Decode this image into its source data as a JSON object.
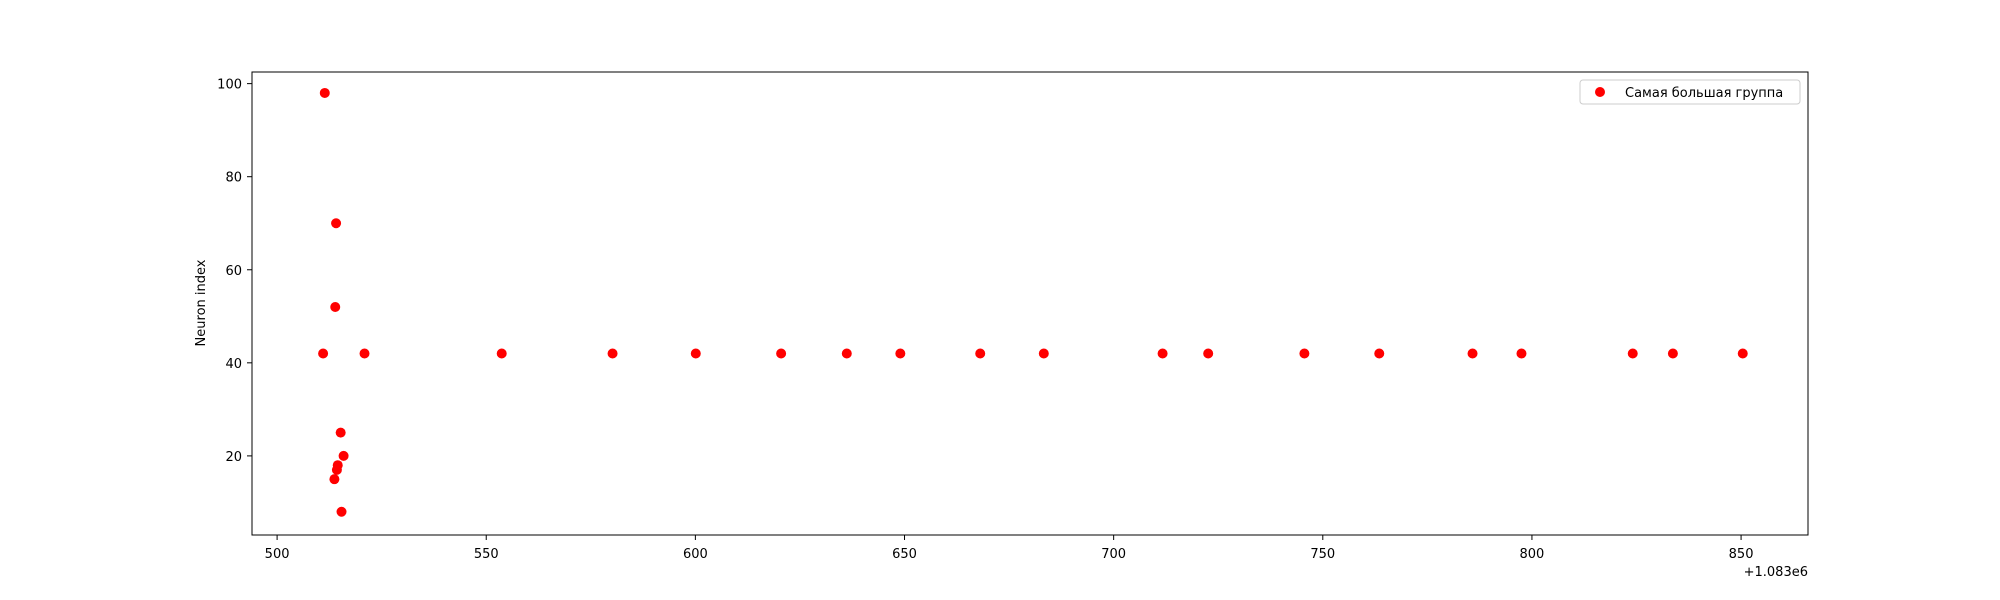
{
  "chart_data": {
    "type": "scatter",
    "title": "",
    "xlabel": "",
    "ylabel": "Neuron index",
    "x_offset_label": "+1.083e6",
    "xlim": [
      494,
      866
    ],
    "ylim": [
      3,
      102.5
    ],
    "xticks": [
      500,
      550,
      600,
      650,
      700,
      750,
      800,
      850
    ],
    "yticks": [
      20,
      40,
      60,
      80,
      100
    ],
    "grid": false,
    "legend_position": "top-right",
    "marker_color": "#ff0000",
    "series": [
      {
        "name": "Самая большая группа",
        "points": [
          {
            "x": 511.0,
            "y": 42
          },
          {
            "x": 511.4,
            "y": 98
          },
          {
            "x": 513.7,
            "y": 15
          },
          {
            "x": 513.9,
            "y": 52
          },
          {
            "x": 514.1,
            "y": 70
          },
          {
            "x": 514.3,
            "y": 17
          },
          {
            "x": 514.5,
            "y": 18
          },
          {
            "x": 515.2,
            "y": 25
          },
          {
            "x": 515.4,
            "y": 8
          },
          {
            "x": 515.9,
            "y": 20
          },
          {
            "x": 520.9,
            "y": 42
          },
          {
            "x": 553.7,
            "y": 42
          },
          {
            "x": 580.2,
            "y": 42
          },
          {
            "x": 600.1,
            "y": 42
          },
          {
            "x": 620.5,
            "y": 42
          },
          {
            "x": 636.2,
            "y": 42
          },
          {
            "x": 649.0,
            "y": 42
          },
          {
            "x": 668.1,
            "y": 42
          },
          {
            "x": 683.3,
            "y": 42
          },
          {
            "x": 711.7,
            "y": 42
          },
          {
            "x": 722.6,
            "y": 42
          },
          {
            "x": 745.6,
            "y": 42
          },
          {
            "x": 763.5,
            "y": 42
          },
          {
            "x": 785.8,
            "y": 42
          },
          {
            "x": 797.5,
            "y": 42
          },
          {
            "x": 824.1,
            "y": 42
          },
          {
            "x": 833.7,
            "y": 42
          },
          {
            "x": 850.4,
            "y": 42
          }
        ]
      }
    ]
  }
}
